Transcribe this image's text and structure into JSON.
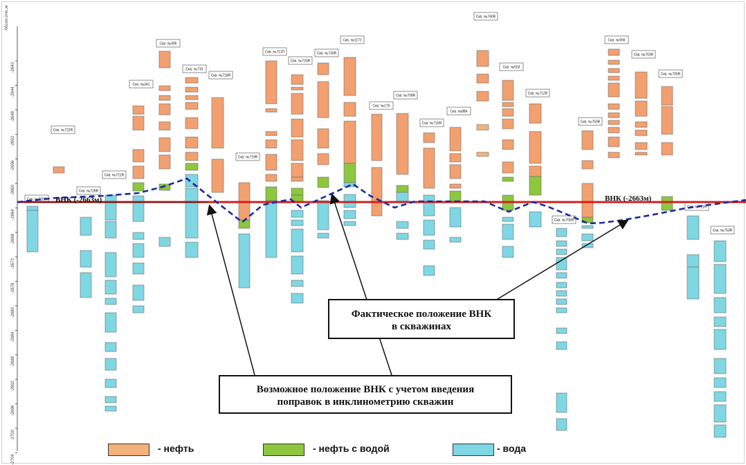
{
  "axis_title": "Абсол.отм.,м",
  "axis_ticks": [
    "-2640",
    "-2644",
    "-2648",
    "-2652",
    "-2656",
    "-2660",
    "-2664",
    "-2668",
    "-2672",
    "-2676",
    "-2680",
    "-2684",
    "-2688",
    "-2692",
    "-2696",
    "-2700",
    "-2704"
  ],
  "owc_label": "ВНК (-2663м)",
  "box_actual": [
    "Фактическое положение ВНК",
    "в скважинах"
  ],
  "box_possible": [
    "Возможное положение ВНК с учетом введения",
    "поправок в инклинометрию скважин"
  ],
  "legend": [
    {
      "label": "- нефть",
      "color": "#f2b27a"
    },
    {
      "label": "- нефть с водой",
      "color": "#8dc63f"
    },
    {
      "label": "- вода",
      "color": "#7fd7e3"
    }
  ],
  "colors": {
    "oil": "#f2a070",
    "oil_light": "#f2b27a",
    "oil_water": "#8dc63f",
    "water": "#7fd7e3",
    "owc_line": "#d21f1f",
    "actual_owc": "#1a2a9c"
  },
  "wells": [
    "Скв. №720R",
    "Скв. №722R",
    "Скв. №728R",
    "Скв. №721R",
    "Скв. №341",
    "Скв. №395",
    "Скв. №710",
    "Скв. №718R",
    "Скв. №719R",
    "Скв. №711П",
    "Скв. №720R",
    "Скв. №730R",
    "Скв. №1172",
    "Скв. №175",
    "Скв. №708R",
    "Скв. №716R",
    "Скв. №884",
    "Скв. №740R",
    "Скв. №503",
    "Скв. №712R",
    "Скв. №705R",
    "Скв. №750R",
    "Скв. №900",
    "Скв. №703R",
    "Скв. №700R",
    "Скв. №711R",
    "Скв. №753R"
  ]
}
